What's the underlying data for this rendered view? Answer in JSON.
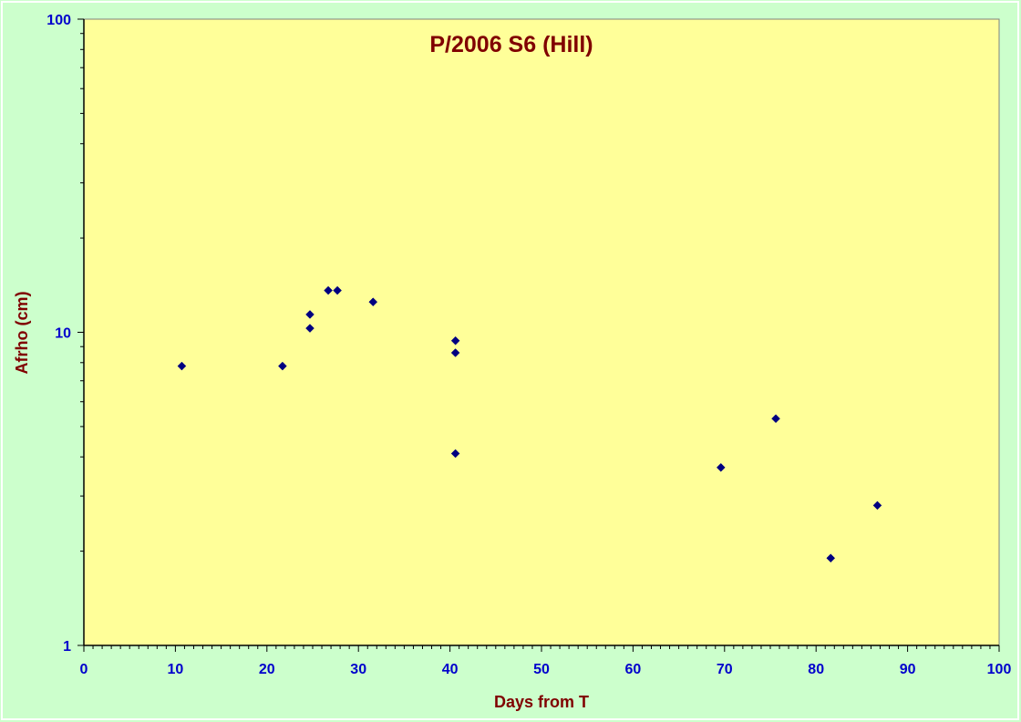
{
  "chart_data": {
    "type": "scatter",
    "title": "P/2006 S6 (Hill)",
    "xlabel": "Days from T",
    "ylabel": "Afrho (cm)",
    "xlim": [
      0,
      100
    ],
    "ylim": [
      1,
      100
    ],
    "yscale": "log",
    "x_ticks": [
      "0",
      "10",
      "20",
      "30",
      "40",
      "50",
      "60",
      "70",
      "80",
      "90",
      "100"
    ],
    "y_ticks": [
      "1",
      "10",
      "100"
    ],
    "grid": false,
    "legend": "none",
    "colors": {
      "background": "#ccffcc",
      "plot_area": "#ffff99",
      "marker": "#000080",
      "title": "#800000",
      "tick_labels": "#0000cc"
    },
    "series": [
      {
        "points": [
          {
            "x": 10.7,
            "y": 7.8
          },
          {
            "x": 21.7,
            "y": 7.8
          },
          {
            "x": 24.7,
            "y": 11.4
          },
          {
            "x": 24.7,
            "y": 10.3
          },
          {
            "x": 26.7,
            "y": 13.6
          },
          {
            "x": 27.7,
            "y": 13.6
          },
          {
            "x": 31.6,
            "y": 12.5
          },
          {
            "x": 40.6,
            "y": 9.4
          },
          {
            "x": 40.6,
            "y": 8.6
          },
          {
            "x": 40.6,
            "y": 4.1
          },
          {
            "x": 69.6,
            "y": 3.7
          },
          {
            "x": 75.6,
            "y": 5.3
          },
          {
            "x": 81.6,
            "y": 1.9
          },
          {
            "x": 86.7,
            "y": 2.8
          }
        ]
      }
    ]
  }
}
